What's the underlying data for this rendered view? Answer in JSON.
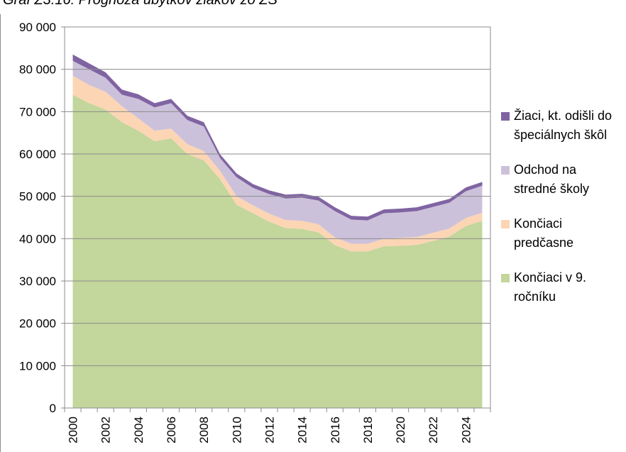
{
  "chart_data": {
    "type": "stacked_area",
    "title": "Graf Z3.16: Prognóza úbytkov žiakov zo ZŠ",
    "categories": [
      "2000",
      null,
      "2002",
      null,
      "2004",
      null,
      "2006",
      null,
      "2008",
      null,
      "2010",
      null,
      "2012",
      null,
      "2014",
      null,
      "2016",
      null,
      "2018",
      null,
      "2020",
      null,
      "2022",
      null,
      "2024",
      null
    ],
    "series": [
      {
        "name": "Končiaci v 9. ročníku",
        "color": "#c3d69b",
        "values": [
          74000,
          72000,
          70500,
          67500,
          65500,
          63000,
          63700,
          60000,
          58500,
          54000,
          48000,
          46000,
          44000,
          42500,
          42300,
          41500,
          38500,
          37000,
          37000,
          38200,
          38300,
          38500,
          39500,
          40500,
          43000,
          44200
        ]
      },
      {
        "name": "Končiaci predčasne",
        "color": "#fcd5b5",
        "values": [
          4500,
          4300,
          4200,
          3800,
          2900,
          2500,
          2300,
          2300,
          2200,
          2000,
          2000,
          1900,
          1900,
          1900,
          1900,
          1900,
          1800,
          1800,
          1800,
          1800,
          1900,
          1900,
          1900,
          1900,
          1900,
          1900
        ]
      },
      {
        "name": "Odchod na stredné školy",
        "color": "#ccc1da",
        "values": [
          3500,
          3700,
          3300,
          2700,
          4600,
          5500,
          6000,
          5700,
          5800,
          3000,
          4500,
          4100,
          4600,
          5100,
          5500,
          5600,
          6200,
          5700,
          5500,
          6000,
          6000,
          6100,
          6100,
          6100,
          6300,
          6400
        ]
      },
      {
        "name": "Žiaci, kt. odišli do špeciálnych škôl",
        "color": "#8064a2",
        "values": [
          1500,
          1400,
          1300,
          1200,
          1100,
          1000,
          1000,
          1000,
          1000,
          900,
          900,
          900,
          900,
          900,
          900,
          900,
          900,
          900,
          900,
          900,
          900,
          900,
          900,
          900,
          900,
          900
        ]
      }
    ],
    "ylim": [
      0,
      90000
    ],
    "yticks": [
      {
        "value": 0,
        "label": "0"
      },
      {
        "value": 10000,
        "label": "10 000"
      },
      {
        "value": 20000,
        "label": "20 000"
      },
      {
        "value": 30000,
        "label": "30 000"
      },
      {
        "value": 40000,
        "label": "40 000"
      },
      {
        "value": 50000,
        "label": "50 000"
      },
      {
        "value": 60000,
        "label": "60 000"
      },
      {
        "value": 70000,
        "label": "70 000"
      },
      {
        "value": 80000,
        "label": "80 000"
      },
      {
        "value": 90000,
        "label": "90 000"
      }
    ],
    "grid": true,
    "legend": "right"
  }
}
